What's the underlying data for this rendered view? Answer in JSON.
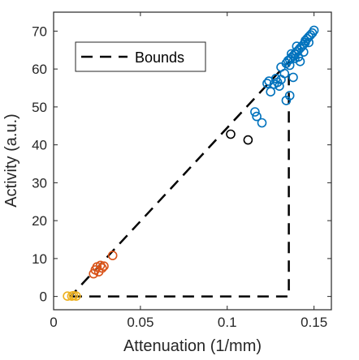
{
  "chart_data": {
    "type": "scatter",
    "title": "",
    "xlabel": "Attenuation (1/mm)",
    "ylabel": "Activity (a.u.)",
    "xlim": [
      0,
      0.16
    ],
    "ylim": [
      -3.5,
      75
    ],
    "xticks": [
      0,
      0.05,
      0.1,
      0.15
    ],
    "xtick_labels": [
      "0",
      "0.05",
      "0.1",
      "0.15"
    ],
    "yticks": [
      0,
      10,
      20,
      30,
      40,
      50,
      60,
      70
    ],
    "ytick_labels": [
      "0",
      "10",
      "20",
      "30",
      "40",
      "50",
      "60",
      "70"
    ],
    "grid": false,
    "legend": {
      "position": "top-left",
      "entries": [
        "Bounds"
      ]
    },
    "bounds": {
      "style": "dashed",
      "color": "#000000",
      "points": [
        [
          0.0098,
          0
        ],
        [
          0.1355,
          0
        ],
        [
          0.1355,
          62
        ],
        [
          0.0098,
          0
        ]
      ]
    },
    "series": [
      {
        "color": "#EDB120",
        "points": [
          [
            0.008,
            0.1
          ],
          [
            0.0105,
            0.1
          ],
          [
            0.0115,
            0.2
          ],
          [
            0.013,
            0.1
          ]
        ]
      },
      {
        "color": "#D95319",
        "points": [
          [
            0.023,
            6.0
          ],
          [
            0.024,
            7.0
          ],
          [
            0.025,
            7.8
          ],
          [
            0.026,
            6.5
          ],
          [
            0.027,
            8.2
          ],
          [
            0.028,
            7.5
          ],
          [
            0.029,
            8.0
          ],
          [
            0.034,
            10.8
          ]
        ]
      },
      {
        "color": "#000000",
        "points": [
          [
            0.102,
            42.8
          ],
          [
            0.112,
            41.3
          ]
        ]
      },
      {
        "color": "#0072BD",
        "points": [
          [
            0.116,
            48.7
          ],
          [
            0.117,
            47.5
          ],
          [
            0.12,
            45.8
          ],
          [
            0.123,
            56.2
          ],
          [
            0.124,
            56.8
          ],
          [
            0.125,
            54.0
          ],
          [
            0.127,
            56.0
          ],
          [
            0.128,
            57.5
          ],
          [
            0.129,
            56.5
          ],
          [
            0.13,
            55.5
          ],
          [
            0.131,
            57.2
          ],
          [
            0.131,
            60.5
          ],
          [
            0.133,
            58.8
          ],
          [
            0.134,
            51.7
          ],
          [
            0.134,
            61.5
          ],
          [
            0.135,
            62.2
          ],
          [
            0.136,
            53.0
          ],
          [
            0.136,
            61.0
          ],
          [
            0.137,
            63.0
          ],
          [
            0.138,
            57.8
          ],
          [
            0.138,
            63.5
          ],
          [
            0.139,
            64.0
          ],
          [
            0.14,
            64.5
          ],
          [
            0.141,
            65.0
          ],
          [
            0.141,
            63.2
          ],
          [
            0.142,
            65.5
          ],
          [
            0.142,
            62.0
          ],
          [
            0.143,
            66.0
          ],
          [
            0.144,
            66.5
          ],
          [
            0.144,
            64.5
          ],
          [
            0.145,
            67.0
          ],
          [
            0.145,
            67.5
          ],
          [
            0.146,
            68.0
          ],
          [
            0.147,
            68.5
          ],
          [
            0.147,
            67.0
          ],
          [
            0.148,
            69.0
          ],
          [
            0.149,
            69.5
          ],
          [
            0.15,
            70.2
          ],
          [
            0.136,
            62.5
          ],
          [
            0.137,
            64.0
          ],
          [
            0.139,
            62.8
          ],
          [
            0.14,
            66.0
          ]
        ]
      }
    ]
  }
}
